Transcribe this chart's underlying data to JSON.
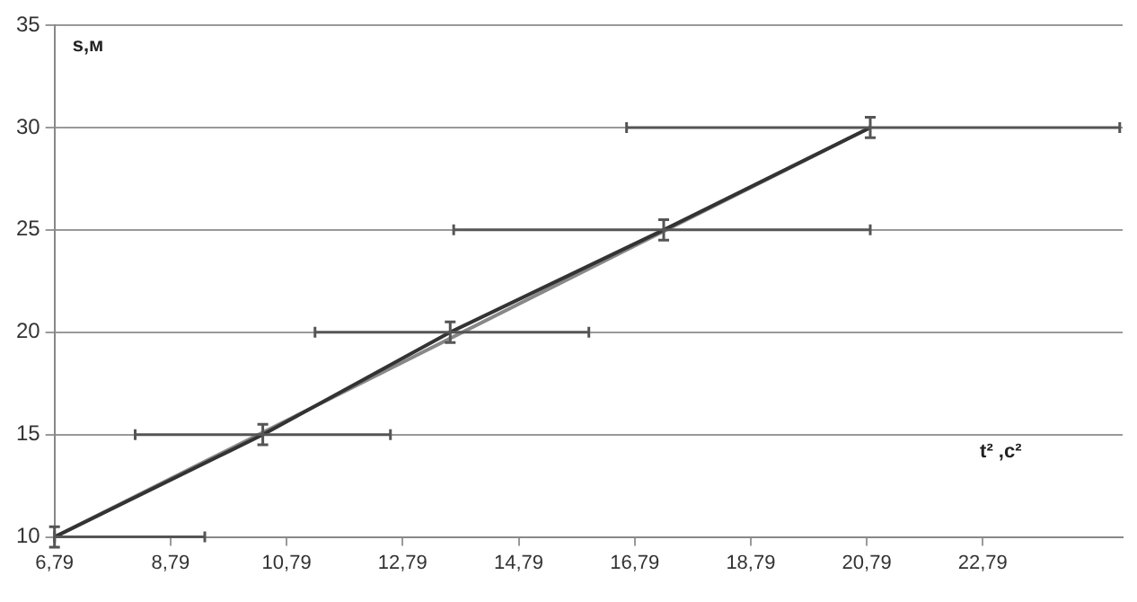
{
  "chart_data": {
    "type": "line",
    "xlabel": "t² ,c²",
    "ylabel": "s,м",
    "x": [
      6.79,
      10.38,
      13.61,
      17.29,
      20.85
    ],
    "xlim": [
      6.79,
      25.2
    ],
    "xticks": [
      {
        "value": 6.79,
        "label": "6,79"
      },
      {
        "value": 8.79,
        "label": "8,79"
      },
      {
        "value": 10.79,
        "label": "10,79"
      },
      {
        "value": 12.79,
        "label": "12,79"
      },
      {
        "value": 14.79,
        "label": "14,79"
      },
      {
        "value": 16.79,
        "label": "16,79"
      },
      {
        "value": 18.79,
        "label": "18,79"
      },
      {
        "value": 20.79,
        "label": "20,79"
      },
      {
        "value": 22.79,
        "label": "22,79"
      }
    ],
    "ylim": [
      10,
      35
    ],
    "yticks": [
      10,
      15,
      20,
      25,
      30,
      35
    ],
    "grid": "y",
    "legend": false,
    "marker": "none",
    "series": [
      {
        "color": "#333333",
        "values": [
          10,
          15,
          20,
          25,
          30
        ],
        "errors": [
          0.5,
          0.5,
          0.5,
          0.5,
          0.5
        ],
        "xerrors": [
          [
            6.79,
            9.38
          ],
          [
            8.18,
            12.58
          ],
          [
            11.28,
            16.0
          ],
          [
            13.67,
            20.85
          ],
          [
            16.65,
            25.15
          ]
        ]
      },
      {
        "type": "line",
        "color": "#888888",
        "x": [
          6.79,
          20.85
        ],
        "values": [
          10,
          30
        ]
      }
    ]
  }
}
